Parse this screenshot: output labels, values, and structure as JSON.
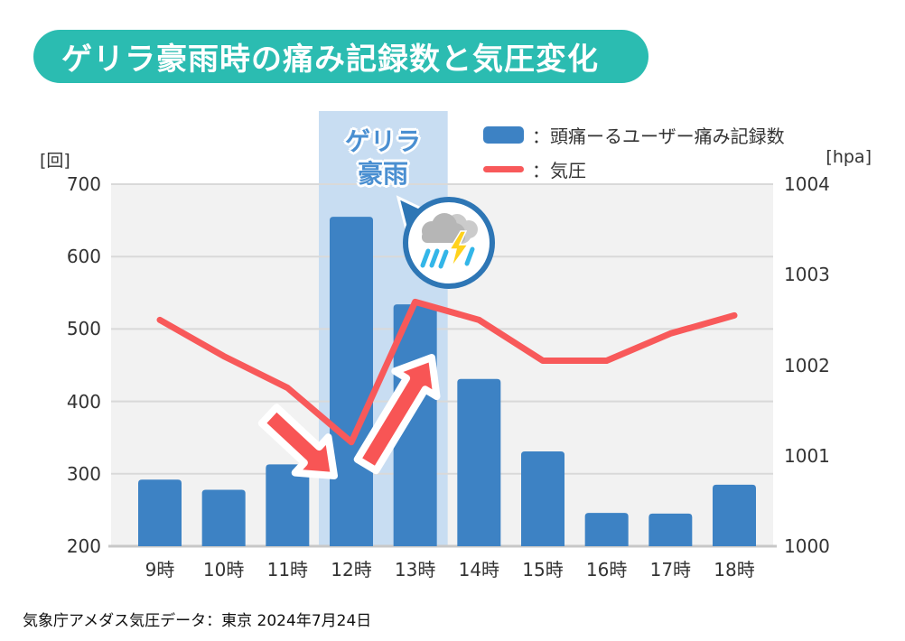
{
  "title": "ゲリラ豪雨時の痛み記録数と気圧変化",
  "legend": {
    "bar_label": "：頭痛ーるユーザー痛み記録数",
    "line_label": "：気圧"
  },
  "annotation": {
    "band_label_line1": "ゲリラ",
    "band_label_line2": "豪雨"
  },
  "footer": "気象庁アメダス気圧データ：東京 2024年7月24日",
  "colors": {
    "title_banner": "#2bbcb1",
    "bar": "#3d82c4",
    "pressure_line": "#f8595a",
    "arrow": "#f85555",
    "highlight_band": "#c8ddf2",
    "highlight_text": "#4a8fd1",
    "plot_background": "#f2f2f2",
    "gridline": "#d9d9d9",
    "badge_border": "#2e76b5",
    "lightning": "#ffd21c",
    "rain": "#33b6e8"
  },
  "chart_data": {
    "type": "combo",
    "title": "ゲリラ豪雨時の痛み記録数と気圧変化",
    "categories": [
      "9時",
      "10時",
      "11時",
      "12時",
      "13時",
      "14時",
      "15時",
      "16時",
      "17時",
      "18時"
    ],
    "series": [
      {
        "name": "頭痛ーるユーザー痛み記録数",
        "type": "bar",
        "axis": "left",
        "color": "#3d82c4",
        "values": [
          292,
          278,
          313,
          655,
          534,
          431,
          331,
          246,
          245,
          285
        ]
      },
      {
        "name": "気圧",
        "type": "line",
        "axis": "right",
        "color": "#f8595a",
        "values": [
          1002.5,
          1002.1,
          1001.75,
          1001.15,
          1002.7,
          1002.5,
          1002.05,
          1002.05,
          1002.35,
          1002.55
        ]
      }
    ],
    "left_axis": {
      "unit": "[回]",
      "min": 200,
      "max": 700,
      "ticks": [
        700,
        600,
        500,
        400,
        300,
        200
      ]
    },
    "right_axis": {
      "unit": "[hpa]",
      "min": 1000,
      "max": 1004,
      "ticks": [
        1004,
        1003,
        1002,
        1001,
        1000
      ]
    },
    "highlight": {
      "label": "ゲリラ豪雨",
      "categories": [
        "12時",
        "13時"
      ]
    },
    "grid": true,
    "legend_position": "top-right"
  }
}
